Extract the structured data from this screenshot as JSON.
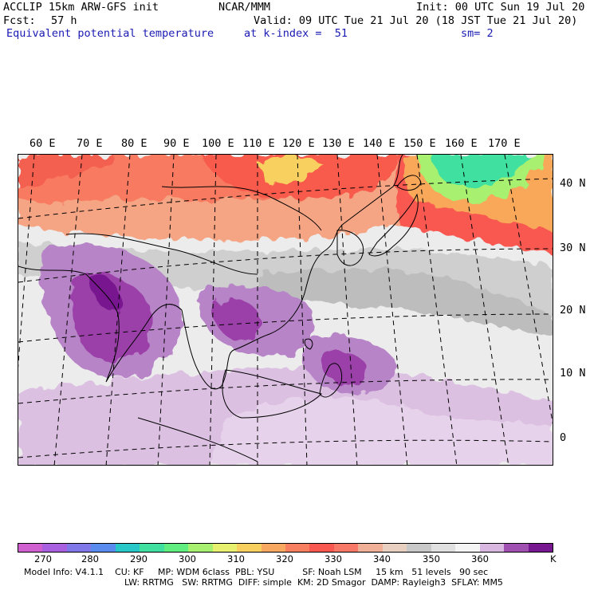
{
  "header": {
    "model": "ACCLIP 15km ARW-GFS init",
    "org": "NCAR/MMM",
    "init": "Init: 00 UTC Sun 19 Jul 20",
    "fcst_label": "Fcst:",
    "fcst_value": "57 h",
    "valid": "Valid: 09 UTC Tue 21 Jul 20 (18 JST Tue 21 Jul 20)",
    "field": "Equivalent potential temperature",
    "level": "at k-index =  51",
    "smoothing": "sm= 2"
  },
  "map": {
    "lon_labels": [
      "60 E",
      "70 E",
      "80 E",
      "90 E",
      "100 E",
      "110 E",
      "120 E",
      "130 E",
      "140 E",
      "150 E",
      "160 E",
      "170 E"
    ],
    "lat_labels": [
      "40 N",
      "30 N",
      "20 N",
      "10 N",
      "0"
    ]
  },
  "colorbar": {
    "colors": [
      "#d060d0",
      "#a860e0",
      "#8078e8",
      "#5a8cf0",
      "#28c8c8",
      "#40e0a0",
      "#60ee80",
      "#a8f070",
      "#e8f070",
      "#f8d060",
      "#f8a860",
      "#f88060",
      "#f85850",
      "#f87868",
      "#f0b098",
      "#e8d0c0",
      "#c8c8c8",
      "#e0e0e0",
      "#f4f4f4",
      "#d8b8e0",
      "#a050b0",
      "#781890"
    ],
    "ticks": [
      "270",
      "280",
      "290",
      "300",
      "310",
      "320",
      "330",
      "340",
      "350",
      "360"
    ],
    "unit": "K"
  },
  "model_info": {
    "line1": [
      "Model Info: V4.1.1",
      "CU: KF",
      "MP: WDM 6class",
      "PBL: YSU",
      "SF: Noah LSM",
      "15 km",
      "51 levels",
      "90 sec"
    ],
    "line2": [
      "LW: RRTMG",
      "SW: RRTMG",
      "DIFF: simple",
      "KM: 2D Smagor",
      "DAMP: Rayleigh3",
      "SFLAY: MM5"
    ]
  }
}
